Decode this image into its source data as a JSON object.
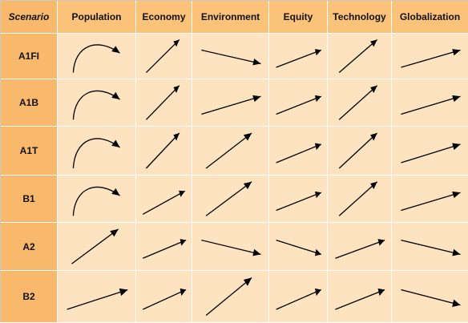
{
  "header": {
    "scenario": "Scenario",
    "columns": [
      "Population",
      "Economy",
      "Environment",
      "Equity",
      "Technology",
      "Globalization"
    ]
  },
  "rows": [
    {
      "label": "A1FI",
      "trends": [
        "curve-peak",
        "steep-up",
        "down",
        "slight-up",
        "steep-up",
        "slight-up"
      ]
    },
    {
      "label": "A1B",
      "trends": [
        "curve-peak",
        "steep-up",
        "slight-up",
        "slight-up",
        "steep-up",
        "slight-up"
      ]
    },
    {
      "label": "A1T",
      "trends": [
        "curve-peak",
        "steep-up",
        "steep-up",
        "slight-up",
        "steep-up",
        "slight-up"
      ]
    },
    {
      "label": "B1",
      "trends": [
        "curve-peak",
        "up",
        "steep-up",
        "slight-up",
        "steep-up",
        "slight-up"
      ]
    },
    {
      "label": "A2",
      "trends": [
        "steep-up",
        "slight-up",
        "down",
        "down",
        "slight-up",
        "down"
      ]
    },
    {
      "label": "B2",
      "trends": [
        "slight-up",
        "slight-up",
        "steep-up",
        "slight-up",
        "slight-up",
        "down"
      ]
    }
  ],
  "colors": {
    "header_bg": "#fbc279",
    "row_header_bg": "#f9b96d",
    "cell_bg": "#fde3bf",
    "arrow": "#000000"
  }
}
